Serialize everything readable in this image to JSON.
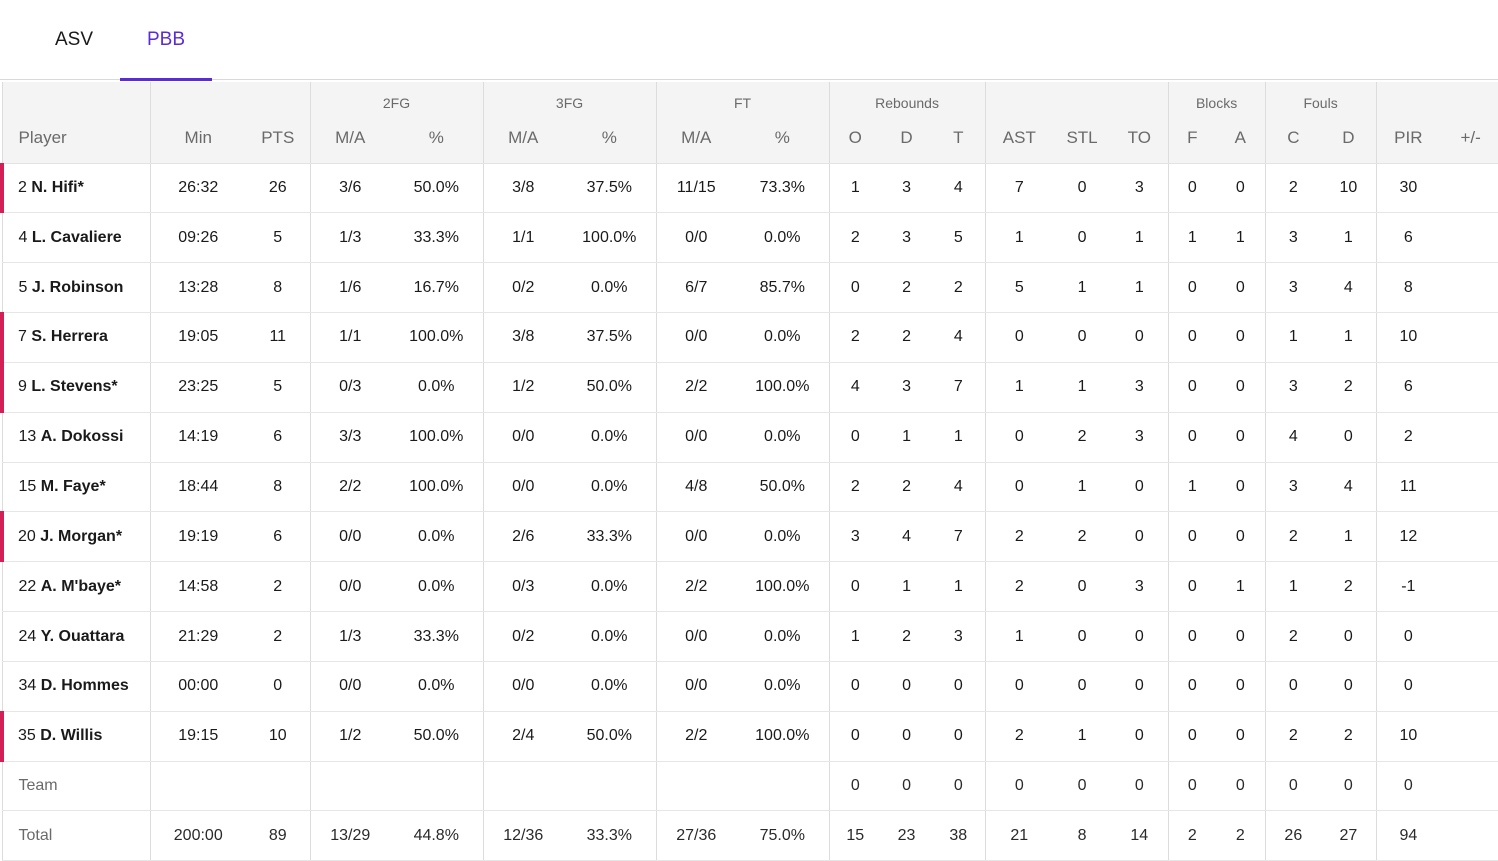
{
  "tabs": [
    {
      "label": "ASV",
      "active": false
    },
    {
      "label": "PBB",
      "active": true
    }
  ],
  "header": {
    "groups": {
      "fg2": "2FG",
      "fg3": "3FG",
      "ft": "FT",
      "rebounds": "Rebounds",
      "blocks": "Blocks",
      "fouls": "Fouls"
    },
    "columns": [
      "Player",
      "Min",
      "PTS",
      "M/A",
      "%",
      "M/A",
      "%",
      "M/A",
      "%",
      "O",
      "D",
      "T",
      "AST",
      "STL",
      "TO",
      "F",
      "A",
      "C",
      "D",
      "PIR",
      "+/-"
    ]
  },
  "rows": [
    {
      "num": "2",
      "name": "N. Hifi*",
      "starter": true,
      "min": "26:32",
      "pts": "26",
      "fg2_ma": "3/6",
      "fg2_pct": "50.0%",
      "fg3_ma": "3/8",
      "fg3_pct": "37.5%",
      "ft_ma": "11/15",
      "ft_pct": "73.3%",
      "reb_o": "1",
      "reb_d": "3",
      "reb_t": "4",
      "ast": "7",
      "stl": "0",
      "to": "3",
      "blk_f": "0",
      "blk_a": "0",
      "foul_c": "2",
      "foul_d": "10",
      "pir": "30",
      "pm": ""
    },
    {
      "num": "4",
      "name": "L. Cavaliere",
      "starter": false,
      "min": "09:26",
      "pts": "5",
      "fg2_ma": "1/3",
      "fg2_pct": "33.3%",
      "fg3_ma": "1/1",
      "fg3_pct": "100.0%",
      "ft_ma": "0/0",
      "ft_pct": "0.0%",
      "reb_o": "2",
      "reb_d": "3",
      "reb_t": "5",
      "ast": "1",
      "stl": "0",
      "to": "1",
      "blk_f": "1",
      "blk_a": "1",
      "foul_c": "3",
      "foul_d": "1",
      "pir": "6",
      "pm": ""
    },
    {
      "num": "5",
      "name": "J. Robinson",
      "starter": false,
      "min": "13:28",
      "pts": "8",
      "fg2_ma": "1/6",
      "fg2_pct": "16.7%",
      "fg3_ma": "0/2",
      "fg3_pct": "0.0%",
      "ft_ma": "6/7",
      "ft_pct": "85.7%",
      "reb_o": "0",
      "reb_d": "2",
      "reb_t": "2",
      "ast": "5",
      "stl": "1",
      "to": "1",
      "blk_f": "0",
      "blk_a": "0",
      "foul_c": "3",
      "foul_d": "4",
      "pir": "8",
      "pm": ""
    },
    {
      "num": "7",
      "name": "S. Herrera",
      "starter": true,
      "min": "19:05",
      "pts": "11",
      "fg2_ma": "1/1",
      "fg2_pct": "100.0%",
      "fg3_ma": "3/8",
      "fg3_pct": "37.5%",
      "ft_ma": "0/0",
      "ft_pct": "0.0%",
      "reb_o": "2",
      "reb_d": "2",
      "reb_t": "4",
      "ast": "0",
      "stl": "0",
      "to": "0",
      "blk_f": "0",
      "blk_a": "0",
      "foul_c": "1",
      "foul_d": "1",
      "pir": "10",
      "pm": ""
    },
    {
      "num": "9",
      "name": "L. Stevens*",
      "starter": true,
      "min": "23:25",
      "pts": "5",
      "fg2_ma": "0/3",
      "fg2_pct": "0.0%",
      "fg3_ma": "1/2",
      "fg3_pct": "50.0%",
      "ft_ma": "2/2",
      "ft_pct": "100.0%",
      "reb_o": "4",
      "reb_d": "3",
      "reb_t": "7",
      "ast": "1",
      "stl": "1",
      "to": "3",
      "blk_f": "0",
      "blk_a": "0",
      "foul_c": "3",
      "foul_d": "2",
      "pir": "6",
      "pm": ""
    },
    {
      "num": "13",
      "name": "A. Dokossi",
      "starter": false,
      "min": "14:19",
      "pts": "6",
      "fg2_ma": "3/3",
      "fg2_pct": "100.0%",
      "fg3_ma": "0/0",
      "fg3_pct": "0.0%",
      "ft_ma": "0/0",
      "ft_pct": "0.0%",
      "reb_o": "0",
      "reb_d": "1",
      "reb_t": "1",
      "ast": "0",
      "stl": "2",
      "to": "3",
      "blk_f": "0",
      "blk_a": "0",
      "foul_c": "4",
      "foul_d": "0",
      "pir": "2",
      "pm": ""
    },
    {
      "num": "15",
      "name": "M. Faye*",
      "starter": false,
      "min": "18:44",
      "pts": "8",
      "fg2_ma": "2/2",
      "fg2_pct": "100.0%",
      "fg3_ma": "0/0",
      "fg3_pct": "0.0%",
      "ft_ma": "4/8",
      "ft_pct": "50.0%",
      "reb_o": "2",
      "reb_d": "2",
      "reb_t": "4",
      "ast": "0",
      "stl": "1",
      "to": "0",
      "blk_f": "1",
      "blk_a": "0",
      "foul_c": "3",
      "foul_d": "4",
      "pir": "11",
      "pm": ""
    },
    {
      "num": "20",
      "name": "J. Morgan*",
      "starter": true,
      "min": "19:19",
      "pts": "6",
      "fg2_ma": "0/0",
      "fg2_pct": "0.0%",
      "fg3_ma": "2/6",
      "fg3_pct": "33.3%",
      "ft_ma": "0/0",
      "ft_pct": "0.0%",
      "reb_o": "3",
      "reb_d": "4",
      "reb_t": "7",
      "ast": "2",
      "stl": "2",
      "to": "0",
      "blk_f": "0",
      "blk_a": "0",
      "foul_c": "2",
      "foul_d": "1",
      "pir": "12",
      "pm": ""
    },
    {
      "num": "22",
      "name": "A. M'baye*",
      "starter": false,
      "min": "14:58",
      "pts": "2",
      "fg2_ma": "0/0",
      "fg2_pct": "0.0%",
      "fg3_ma": "0/3",
      "fg3_pct": "0.0%",
      "ft_ma": "2/2",
      "ft_pct": "100.0%",
      "reb_o": "0",
      "reb_d": "1",
      "reb_t": "1",
      "ast": "2",
      "stl": "0",
      "to": "3",
      "blk_f": "0",
      "blk_a": "1",
      "foul_c": "1",
      "foul_d": "2",
      "pir": "-1",
      "pm": ""
    },
    {
      "num": "24",
      "name": "Y. Ouattara",
      "starter": false,
      "min": "21:29",
      "pts": "2",
      "fg2_ma": "1/3",
      "fg2_pct": "33.3%",
      "fg3_ma": "0/2",
      "fg3_pct": "0.0%",
      "ft_ma": "0/0",
      "ft_pct": "0.0%",
      "reb_o": "1",
      "reb_d": "2",
      "reb_t": "3",
      "ast": "1",
      "stl": "0",
      "to": "0",
      "blk_f": "0",
      "blk_a": "0",
      "foul_c": "2",
      "foul_d": "0",
      "pir": "0",
      "pm": ""
    },
    {
      "num": "34",
      "name": "D. Hommes",
      "starter": false,
      "min": "00:00",
      "pts": "0",
      "fg2_ma": "0/0",
      "fg2_pct": "0.0%",
      "fg3_ma": "0/0",
      "fg3_pct": "0.0%",
      "ft_ma": "0/0",
      "ft_pct": "0.0%",
      "reb_o": "0",
      "reb_d": "0",
      "reb_t": "0",
      "ast": "0",
      "stl": "0",
      "to": "0",
      "blk_f": "0",
      "blk_a": "0",
      "foul_c": "0",
      "foul_d": "0",
      "pir": "0",
      "pm": ""
    },
    {
      "num": "35",
      "name": "D. Willis",
      "starter": true,
      "min": "19:15",
      "pts": "10",
      "fg2_ma": "1/2",
      "fg2_pct": "50.0%",
      "fg3_ma": "2/4",
      "fg3_pct": "50.0%",
      "ft_ma": "2/2",
      "ft_pct": "100.0%",
      "reb_o": "0",
      "reb_d": "0",
      "reb_t": "0",
      "ast": "2",
      "stl": "1",
      "to": "0",
      "blk_f": "0",
      "blk_a": "0",
      "foul_c": "2",
      "foul_d": "2",
      "pir": "10",
      "pm": ""
    }
  ],
  "team_row": {
    "label": "Team",
    "min": "",
    "pts": "",
    "fg2_ma": "",
    "fg2_pct": "",
    "fg3_ma": "",
    "fg3_pct": "",
    "ft_ma": "",
    "ft_pct": "",
    "reb_o": "0",
    "reb_d": "0",
    "reb_t": "0",
    "ast": "0",
    "stl": "0",
    "to": "0",
    "blk_f": "0",
    "blk_a": "0",
    "foul_c": "0",
    "foul_d": "0",
    "pir": "0",
    "pm": ""
  },
  "total_row": {
    "label": "Total",
    "min": "200:00",
    "pts": "89",
    "fg2_ma": "13/29",
    "fg2_pct": "44.8%",
    "fg3_ma": "12/36",
    "fg3_pct": "33.3%",
    "ft_ma": "27/36",
    "ft_pct": "75.0%",
    "reb_o": "15",
    "reb_d": "23",
    "reb_t": "38",
    "ast": "21",
    "stl": "8",
    "to": "14",
    "blk_f": "2",
    "blk_a": "2",
    "foul_c": "26",
    "foul_d": "27",
    "pir": "94",
    "pm": ""
  },
  "colors": {
    "accent": "#5b2bd6",
    "starter_marker": "#d21f56"
  }
}
